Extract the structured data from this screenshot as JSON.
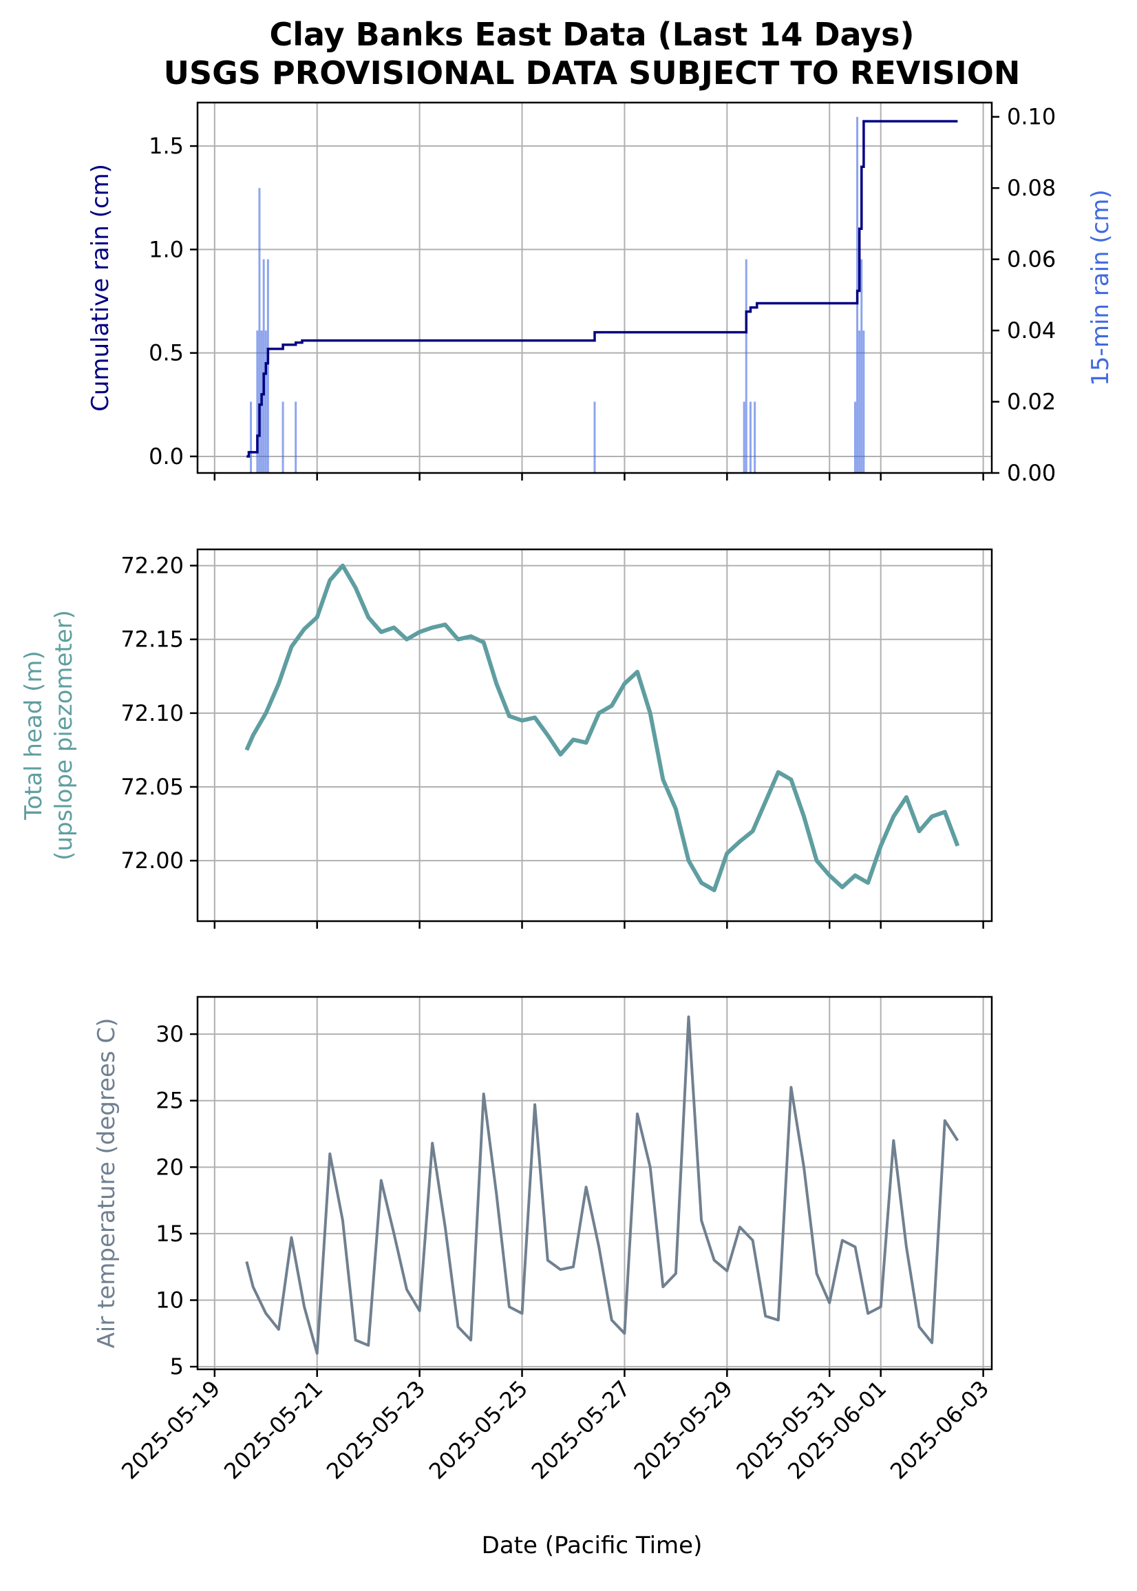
{
  "title_line1": "Clay Banks East Data (Last 14 Days)",
  "title_line2": "USGS PROVISIONAL DATA SUBJECT TO REVISION",
  "xlabel": "Date (Pacific Time)",
  "colors": {
    "cumulative_rain": "#000080",
    "rain_15min": "#4169e1",
    "total_head": "#5f9ea0",
    "air_temp": "#708090"
  },
  "chart_data": [
    {
      "type": "line",
      "panel": "rain",
      "ylabel": "Cumulative rain (cm)",
      "ylabel_right": "15-min rain (cm)",
      "xlim": [
        "2025-05-18T16:00",
        "2025-06-03T04:00"
      ],
      "ylim": [
        -0.08,
        1.71
      ],
      "ylim_right": [
        0.0,
        0.104
      ],
      "xticks": [
        "2025-05-19",
        "2025-05-21",
        "2025-05-23",
        "2025-05-25",
        "2025-05-27",
        "2025-05-29",
        "2025-05-31",
        "2025-06-01",
        "2025-06-03"
      ],
      "yticks": [
        "0.0",
        "0.5",
        "1.0",
        "1.5"
      ],
      "yticks_right": [
        "0.00",
        "0.02",
        "0.04",
        "0.06",
        "0.08",
        "0.10"
      ],
      "grid": true,
      "series": [
        {
          "kind": "step-line",
          "axis": "left",
          "x": [
            "2025-05-19T15:00",
            "2025-05-19T16:00",
            "2025-05-19T19:00",
            "2025-05-19T20:00",
            "2025-05-19T21:00",
            "2025-05-19T22:00",
            "2025-05-19T23:00",
            "2025-05-20T00:00",
            "2025-05-20T01:00",
            "2025-05-20T02:00",
            "2025-05-20T06:00",
            "2025-05-20T08:00",
            "2025-05-20T13:00",
            "2025-05-20T14:00",
            "2025-05-20T16:00",
            "2025-05-20T17:00",
            "2025-05-26T09:00",
            "2025-05-26T10:00",
            "2025-05-29T08:00",
            "2025-05-29T09:00",
            "2025-05-29T11:00",
            "2025-05-29T14:00",
            "2025-05-30T19:00",
            "2025-05-31T12:00",
            "2025-05-31T13:00",
            "2025-05-31T14:00",
            "2025-05-31T15:00",
            "2025-05-31T16:00",
            "2025-06-02T12:00"
          ],
          "y": [
            0.0,
            0.02,
            0.02,
            0.1,
            0.25,
            0.3,
            0.4,
            0.45,
            0.52,
            0.52,
            0.52,
            0.54,
            0.54,
            0.55,
            0.55,
            0.56,
            0.56,
            0.6,
            0.6,
            0.7,
            0.72,
            0.74,
            0.74,
            0.74,
            0.8,
            1.1,
            1.4,
            1.62,
            1.62
          ]
        },
        {
          "kind": "bars",
          "axis": "right",
          "x": [
            "2025-05-19T17:00",
            "2025-05-19T20:00",
            "2025-05-19T21:00",
            "2025-05-19T22:00",
            "2025-05-19T23:00",
            "2025-05-20T00:00",
            "2025-05-20T01:00",
            "2025-05-20T08:00",
            "2025-05-20T14:00",
            "2025-05-26T10:00",
            "2025-05-29T08:00",
            "2025-05-29T09:00",
            "2025-05-29T11:00",
            "2025-05-29T13:00",
            "2025-05-31T12:00",
            "2025-05-31T13:00",
            "2025-05-31T14:00",
            "2025-05-31T15:00",
            "2025-05-31T16:00"
          ],
          "y": [
            0.02,
            0.04,
            0.08,
            0.04,
            0.06,
            0.04,
            0.06,
            0.02,
            0.02,
            0.02,
            0.02,
            0.06,
            0.02,
            0.02,
            0.02,
            0.1,
            0.04,
            0.06,
            0.04
          ]
        }
      ]
    },
    {
      "type": "line",
      "panel": "head",
      "ylabel": "Total head (m)",
      "ylabel_line2": "(upslope piezometer)",
      "xlim": [
        "2025-05-18T16:00",
        "2025-06-03T04:00"
      ],
      "ylim": [
        71.959,
        72.211
      ],
      "xticks": [
        "2025-05-19",
        "2025-05-21",
        "2025-05-23",
        "2025-05-25",
        "2025-05-27",
        "2025-05-29",
        "2025-05-31",
        "2025-06-01",
        "2025-06-03"
      ],
      "yticks": [
        "72.00",
        "72.05",
        "72.10",
        "72.15",
        "72.20"
      ],
      "grid": true,
      "series": [
        {
          "x": [
            "2025-05-19T15:00",
            "2025-05-19T18:00",
            "2025-05-20T00:00",
            "2025-05-20T06:00",
            "2025-05-20T12:00",
            "2025-05-20T18:00",
            "2025-05-21T00:00",
            "2025-05-21T06:00",
            "2025-05-21T12:00",
            "2025-05-21T18:00",
            "2025-05-22T00:00",
            "2025-05-22T06:00",
            "2025-05-22T12:00",
            "2025-05-22T18:00",
            "2025-05-23T00:00",
            "2025-05-23T06:00",
            "2025-05-23T12:00",
            "2025-05-23T18:00",
            "2025-05-24T00:00",
            "2025-05-24T06:00",
            "2025-05-24T12:00",
            "2025-05-24T18:00",
            "2025-05-25T00:00",
            "2025-05-25T06:00",
            "2025-05-25T12:00",
            "2025-05-25T18:00",
            "2025-05-26T00:00",
            "2025-05-26T06:00",
            "2025-05-26T12:00",
            "2025-05-26T18:00",
            "2025-05-27T00:00",
            "2025-05-27T06:00",
            "2025-05-27T12:00",
            "2025-05-27T18:00",
            "2025-05-28T00:00",
            "2025-05-28T06:00",
            "2025-05-28T12:00",
            "2025-05-28T18:00",
            "2025-05-29T00:00",
            "2025-05-29T06:00",
            "2025-05-29T12:00",
            "2025-05-29T18:00",
            "2025-05-30T00:00",
            "2025-05-30T06:00",
            "2025-05-30T12:00",
            "2025-05-30T18:00",
            "2025-05-31T00:00",
            "2025-05-31T06:00",
            "2025-05-31T12:00",
            "2025-05-31T18:00",
            "2025-06-01T00:00",
            "2025-06-01T06:00",
            "2025-06-01T12:00",
            "2025-06-01T18:00",
            "2025-06-02T00:00",
            "2025-06-02T06:00",
            "2025-06-02T12:00"
          ],
          "y": [
            72.075,
            72.085,
            72.1,
            72.12,
            72.145,
            72.157,
            72.165,
            72.19,
            72.2,
            72.185,
            72.165,
            72.155,
            72.158,
            72.15,
            72.155,
            72.158,
            72.16,
            72.15,
            72.152,
            72.148,
            72.12,
            72.098,
            72.095,
            72.097,
            72.085,
            72.072,
            72.082,
            72.08,
            72.1,
            72.105,
            72.12,
            72.128,
            72.1,
            72.055,
            72.035,
            72.0,
            71.985,
            71.98,
            72.005,
            72.013,
            72.02,
            72.04,
            72.06,
            72.055,
            72.03,
            72.0,
            71.99,
            71.982,
            71.99,
            71.985,
            72.01,
            72.03,
            72.043,
            72.02,
            72.03,
            72.033,
            72.01
          ]
        }
      ]
    },
    {
      "type": "line",
      "panel": "temperature",
      "ylabel": "Air temperature (degrees C)",
      "xlim": [
        "2025-05-18T16:00",
        "2025-06-03T04:00"
      ],
      "ylim": [
        4.8,
        32.8
      ],
      "xticks": [
        "2025-05-19",
        "2025-05-21",
        "2025-05-23",
        "2025-05-25",
        "2025-05-27",
        "2025-05-29",
        "2025-05-31",
        "2025-06-01",
        "2025-06-03"
      ],
      "yticks": [
        "5",
        "10",
        "15",
        "20",
        "25",
        "30"
      ],
      "grid": true,
      "series": [
        {
          "x": [
            "2025-05-19T15:00",
            "2025-05-19T18:00",
            "2025-05-20T00:00",
            "2025-05-20T06:00",
            "2025-05-20T12:00",
            "2025-05-20T18:00",
            "2025-05-21T00:00",
            "2025-05-21T06:00",
            "2025-05-21T12:00",
            "2025-05-21T18:00",
            "2025-05-22T00:00",
            "2025-05-22T06:00",
            "2025-05-22T12:00",
            "2025-05-22T18:00",
            "2025-05-23T00:00",
            "2025-05-23T06:00",
            "2025-05-23T12:00",
            "2025-05-23T18:00",
            "2025-05-24T00:00",
            "2025-05-24T06:00",
            "2025-05-24T12:00",
            "2025-05-24T18:00",
            "2025-05-25T00:00",
            "2025-05-25T06:00",
            "2025-05-25T12:00",
            "2025-05-25T18:00",
            "2025-05-26T00:00",
            "2025-05-26T06:00",
            "2025-05-26T12:00",
            "2025-05-26T18:00",
            "2025-05-27T00:00",
            "2025-05-27T06:00",
            "2025-05-27T12:00",
            "2025-05-27T18:00",
            "2025-05-28T00:00",
            "2025-05-28T06:00",
            "2025-05-28T12:00",
            "2025-05-28T18:00",
            "2025-05-29T00:00",
            "2025-05-29T06:00",
            "2025-05-29T12:00",
            "2025-05-29T18:00",
            "2025-05-30T00:00",
            "2025-05-30T06:00",
            "2025-05-30T12:00",
            "2025-05-30T18:00",
            "2025-05-31T00:00",
            "2025-05-31T06:00",
            "2025-05-31T12:00",
            "2025-05-31T18:00",
            "2025-06-01T00:00",
            "2025-06-01T06:00",
            "2025-06-01T12:00",
            "2025-06-01T18:00",
            "2025-06-02T00:00",
            "2025-06-02T06:00",
            "2025-06-02T12:00"
          ],
          "y": [
            12.9,
            11.0,
            9.0,
            7.8,
            14.7,
            9.5,
            6.0,
            21.0,
            16.0,
            7.0,
            6.6,
            19.0,
            15.0,
            10.8,
            9.2,
            21.8,
            15.5,
            8.0,
            7.0,
            25.5,
            18.0,
            9.5,
            9.0,
            24.7,
            13.0,
            12.3,
            12.5,
            18.5,
            14.0,
            8.5,
            7.5,
            24.0,
            20.0,
            11.0,
            12.0,
            31.3,
            16.0,
            13.0,
            12.2,
            15.5,
            14.5,
            8.8,
            8.5,
            26.0,
            20.0,
            12.0,
            9.8,
            14.5,
            14.0,
            9.0,
            9.5,
            22.0,
            14.0,
            8.0,
            6.8,
            23.5,
            22.0
          ]
        }
      ]
    }
  ]
}
